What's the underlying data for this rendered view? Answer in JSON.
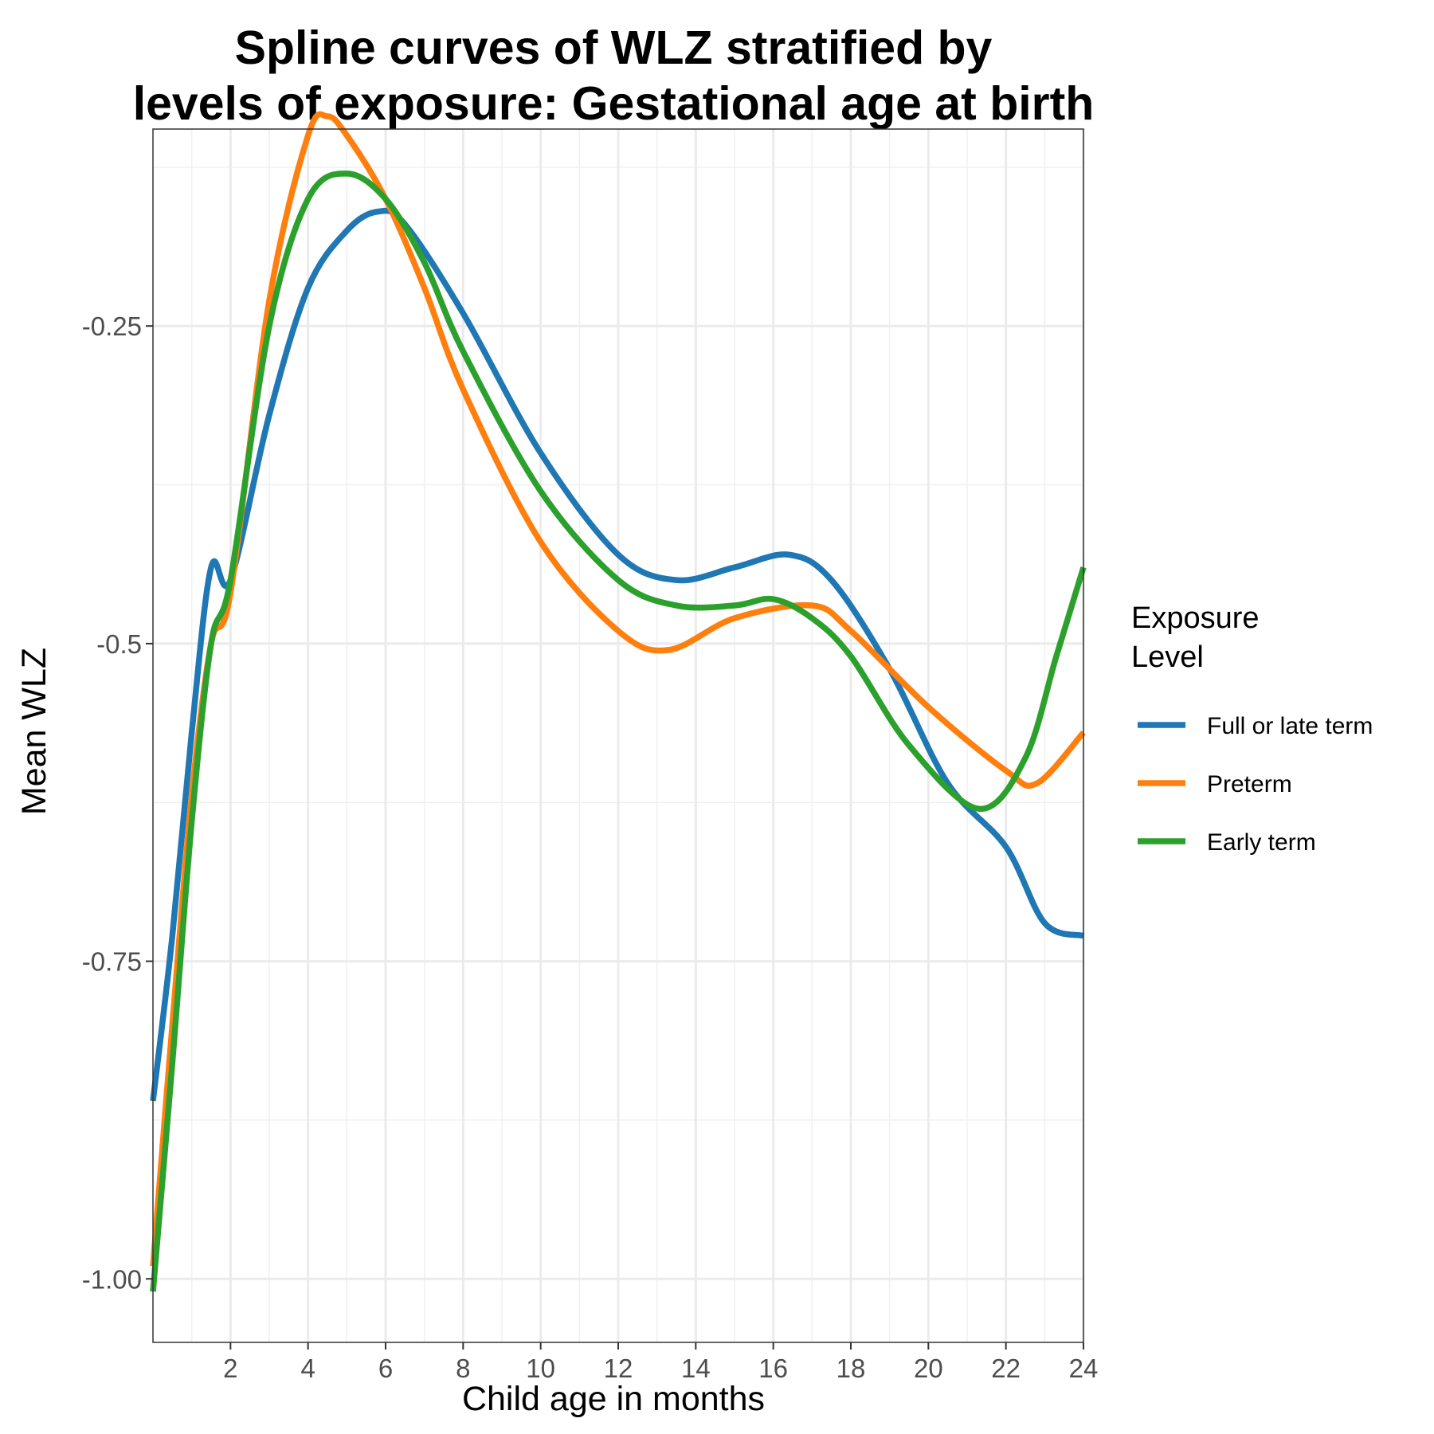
{
  "chart_data": {
    "type": "line",
    "title_lines": [
      "Spline curves of WLZ stratified by",
      "levels of exposure: Gestational age at birth"
    ],
    "xlabel": "Child age in months",
    "ylabel": "Mean WLZ",
    "xlim": [
      0,
      24
    ],
    "ylim": [
      -1.05,
      -0.095
    ],
    "x_ticks": [
      2,
      4,
      6,
      8,
      10,
      12,
      14,
      16,
      18,
      20,
      22,
      24
    ],
    "y_ticks": [
      -1.0,
      -0.75,
      -0.5,
      -0.25
    ],
    "y_tick_labels": [
      "-1.00",
      "-0.75",
      -0.5,
      -0.25
    ],
    "grid": true,
    "legend": {
      "title_lines": [
        "Exposure",
        "Level"
      ],
      "position": "right"
    },
    "series": [
      {
        "name": "Full or late term",
        "color": "#1f77b4",
        "x": [
          0,
          0.5,
          1,
          1.5,
          2,
          3,
          4,
          5,
          5.8,
          6.5,
          8,
          10,
          12,
          13.5,
          15,
          16.4,
          17.5,
          19,
          20.5,
          22,
          23,
          24
        ],
        "y": [
          -0.86,
          -0.73,
          -0.57,
          -0.44,
          -0.45,
          -0.32,
          -0.22,
          -0.175,
          -0.16,
          -0.17,
          -0.24,
          -0.35,
          -0.43,
          -0.45,
          -0.44,
          -0.43,
          -0.45,
          -0.52,
          -0.61,
          -0.66,
          -0.72,
          -0.73
        ]
      },
      {
        "name": "Preterm",
        "color": "#ff7f0e",
        "x": [
          0,
          0.5,
          1,
          1.5,
          2,
          3,
          4,
          4.5,
          5,
          6,
          7,
          8,
          10,
          12,
          13.3,
          15,
          17,
          18,
          20,
          22,
          22.8,
          24
        ],
        "y": [
          -0.99,
          -0.8,
          -0.62,
          -0.5,
          -0.46,
          -0.23,
          -0.1,
          -0.085,
          -0.1,
          -0.15,
          -0.22,
          -0.3,
          -0.42,
          -0.49,
          -0.505,
          -0.48,
          -0.47,
          -0.49,
          -0.55,
          -0.6,
          -0.61,
          -0.57
        ]
      },
      {
        "name": "Early term",
        "color": "#2ca02c",
        "x": [
          0,
          0.5,
          1,
          1.5,
          2,
          3,
          4,
          5,
          6,
          7,
          8,
          10,
          12,
          13.5,
          15,
          16,
          17,
          18,
          19.5,
          21.3,
          22.5,
          23.3,
          24
        ],
        "y": [
          -1.01,
          -0.83,
          -0.64,
          -0.5,
          -0.45,
          -0.25,
          -0.15,
          -0.13,
          -0.15,
          -0.2,
          -0.27,
          -0.38,
          -0.45,
          -0.47,
          -0.47,
          -0.465,
          -0.48,
          -0.51,
          -0.58,
          -0.63,
          -0.59,
          -0.51,
          -0.44
        ]
      }
    ]
  }
}
